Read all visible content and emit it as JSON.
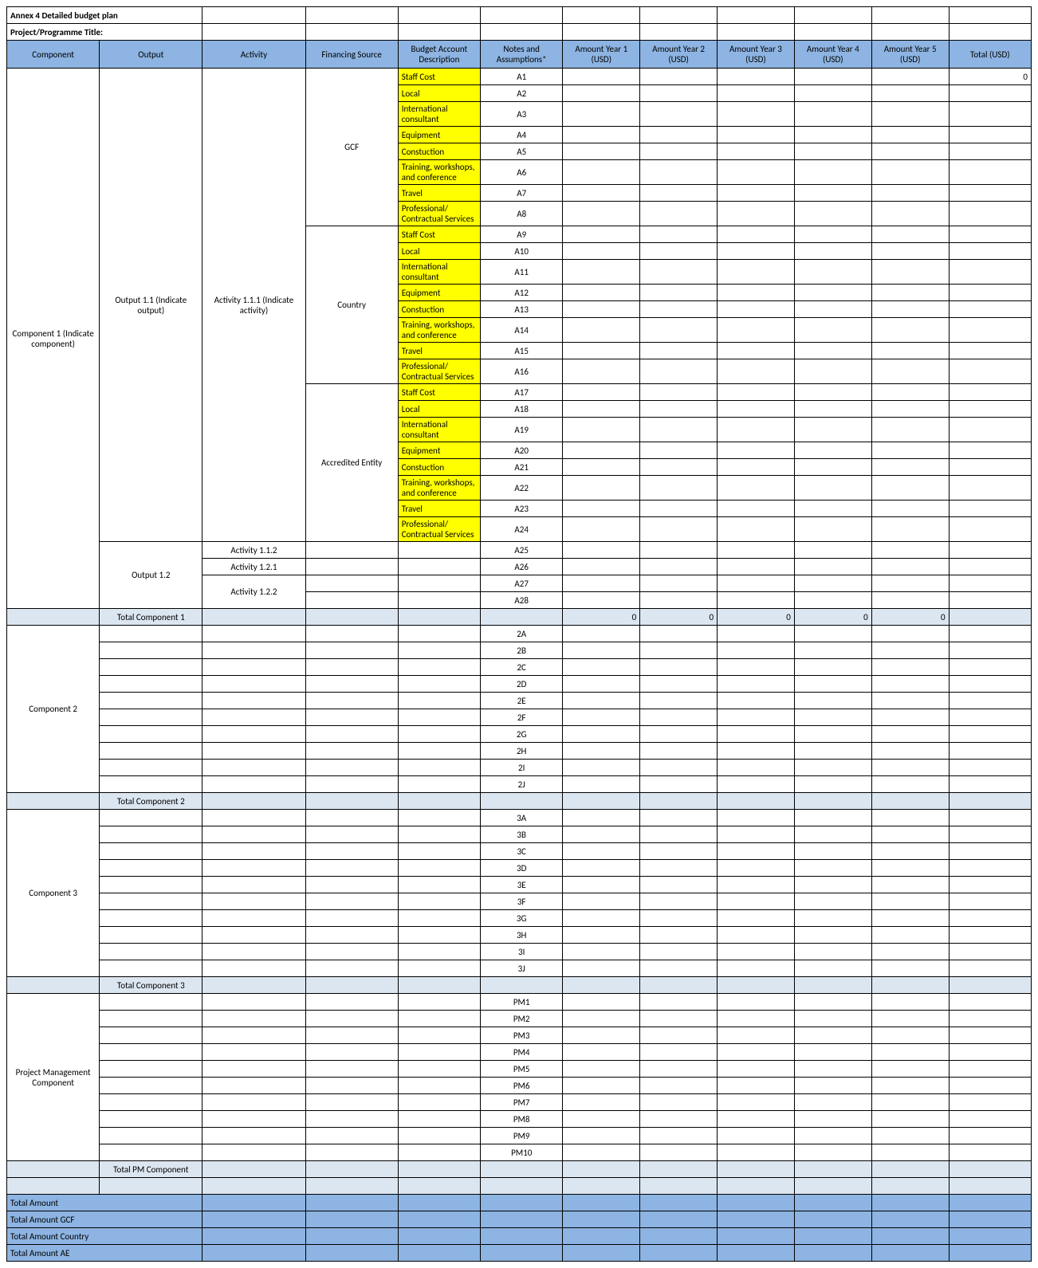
{
  "titles": {
    "annex": "Annex 4 Detailed budget plan",
    "project": "Project/Programme Title:"
  },
  "headers": {
    "component": "Component",
    "output": "Output",
    "activity": "Activity",
    "financing": "Financing Source",
    "desc": "Budget Account Description",
    "notes": "Notes and Assumptions*",
    "y1": "Amount Year 1 (USD)",
    "y2": "Amount Year 2 (USD)",
    "y3": "Amount Year 3 (USD)",
    "y4": "Amount Year 4 (USD)",
    "y5": "Amount Year 5 (USD)",
    "total": "Total (USD)"
  },
  "budget_accounts": [
    "Staff Cost",
    "Local",
    "International consultant",
    "Equipment",
    "Constuction",
    "Training, workshops, and conference",
    "Travel",
    "Professional/ Contractual Services"
  ],
  "financing_sources": [
    "GCF",
    "Country",
    "Accredited Entity"
  ],
  "component1": {
    "label": "Component 1 (Indicate component)",
    "output11": "Output 1.1 (Indicate output)",
    "activity111": "Activity 1.1.1 (Indicate activity)",
    "output12": "Output 1.2",
    "activity112": "Activity 1.1.2",
    "activity121": "Activity 1.2.1",
    "activity122": "Activity 1.2.2",
    "notesA": [
      "A1",
      "A2",
      "A3",
      "A4",
      "A5",
      "A6",
      "A7",
      "A8",
      "A9",
      "A10",
      "A11",
      "A12",
      "A13",
      "A14",
      "A15",
      "A16",
      "A17",
      "A18",
      "A19",
      "A20",
      "A21",
      "A22",
      "A23",
      "A24"
    ],
    "notes_extra": [
      "A25",
      "A26",
      "A27",
      "A28"
    ],
    "subtotal_label": "Total Component 1",
    "zero": "0",
    "total_zero": "0"
  },
  "component2": {
    "label": "Component 2",
    "notes": [
      "2A",
      "2B",
      "2C",
      "2D",
      "2E",
      "2F",
      "2G",
      "2H",
      "2I",
      "2J"
    ],
    "subtotal_label": "Total Component 2"
  },
  "component3": {
    "label": "Component 3",
    "notes": [
      "3A",
      "3B",
      "3C",
      "3D",
      "3E",
      "3F",
      "3G",
      "3H",
      "3I",
      "3J"
    ],
    "subtotal_label": "Total Component 3"
  },
  "pm": {
    "label": "Project Management Component",
    "notes": [
      "PM1",
      "PM2",
      "PM3",
      "PM4",
      "PM5",
      "PM6",
      "PM7",
      "PM8",
      "PM9",
      "PM10"
    ],
    "subtotal_label": "Total PM Component"
  },
  "summaries": [
    "Total Amount",
    "Total Amount GCF",
    "Total Amount Country",
    "Total Amount AE"
  ],
  "style": {
    "header_bg": "#8db4e2",
    "highlight_bg": "#ffff00",
    "subtotal_bg": "#dce6f1",
    "border_color": "#000000",
    "font_size": 11
  }
}
